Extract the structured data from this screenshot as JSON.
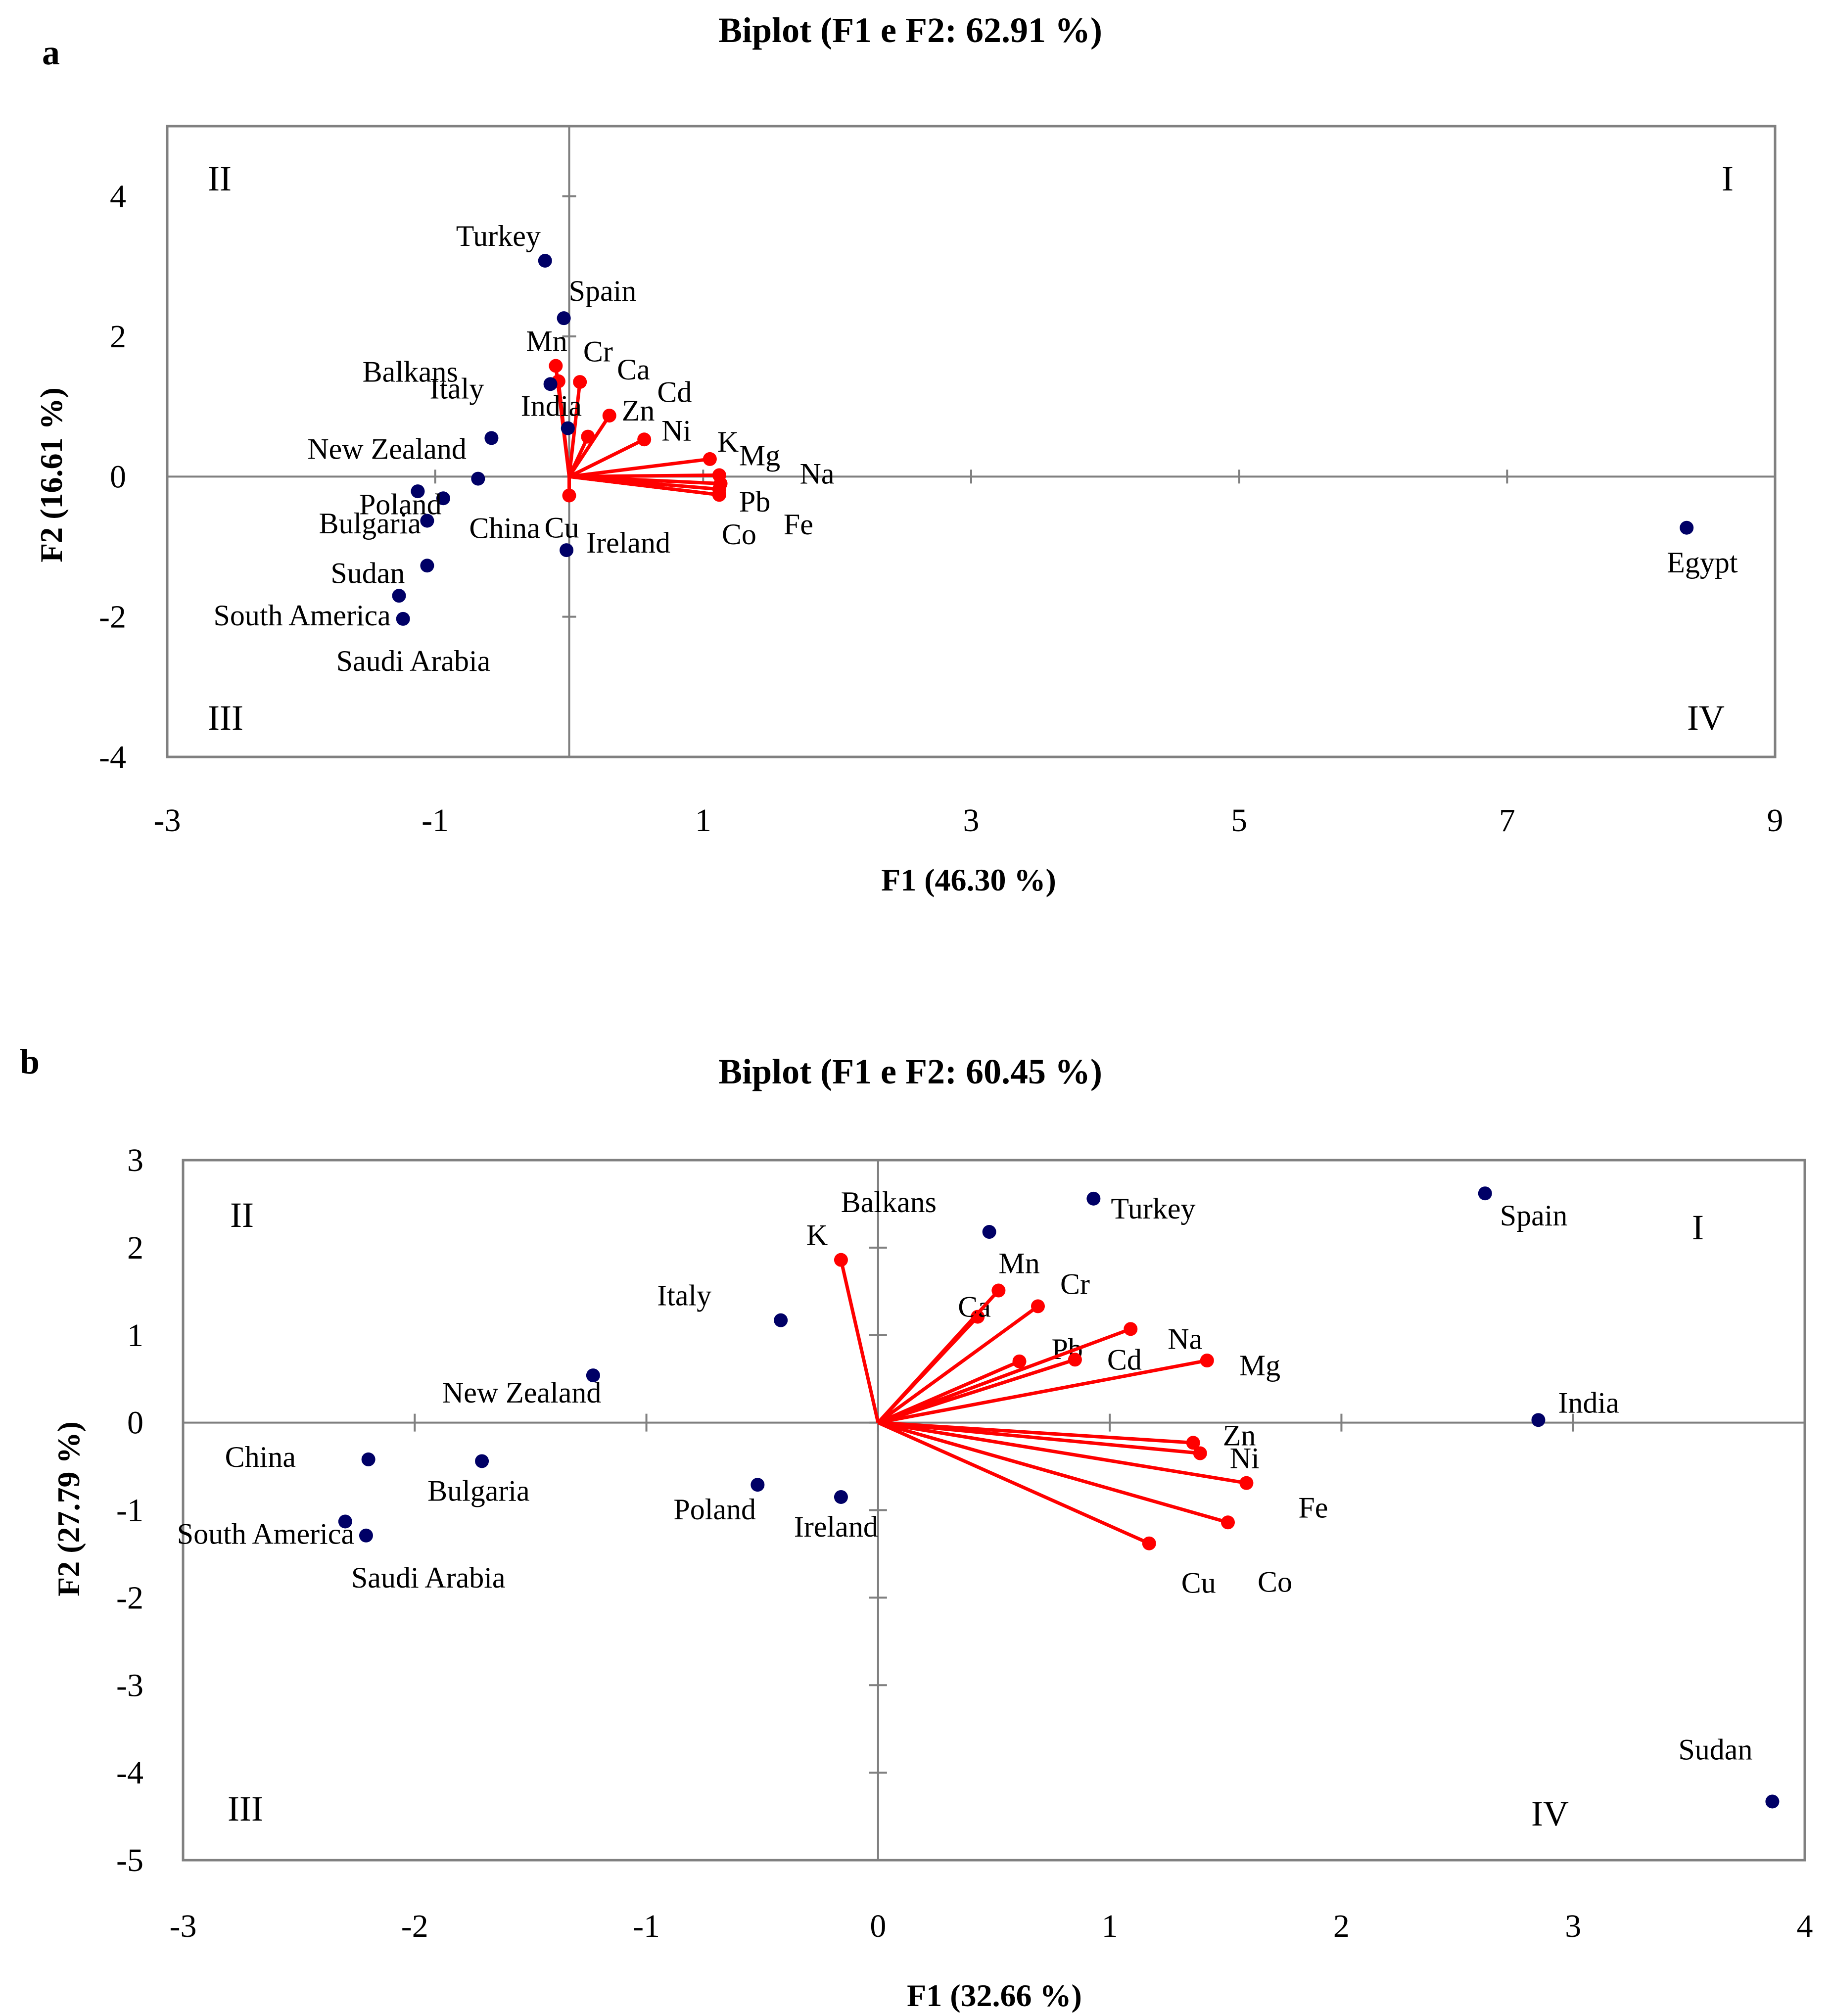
{
  "chart_data": [
    {
      "type": "scatter",
      "panel_label": "a",
      "title": "Biplot (F1 e F2: 62.91 %)",
      "xlabel": "F1 (46.30 %)",
      "ylabel": "F2 (16.61 %)",
      "xlim": [
        -3,
        9
      ],
      "ylim": [
        -4,
        5
      ],
      "xticks": [
        "-3",
        "-1",
        "1",
        "3",
        "5",
        "7",
        "9"
      ],
      "yticks": [
        "-4",
        "-2",
        "0",
        "2",
        "4"
      ],
      "xtick_values": [
        -3,
        -1,
        1,
        3,
        5,
        7,
        9
      ],
      "ytick_values": [
        -4,
        -2,
        0,
        2,
        4
      ],
      "grid": false,
      "quadrants": [
        "I",
        "II",
        "III",
        "IV"
      ],
      "colors": {
        "observations": "#000066",
        "variables": "#ff0000",
        "frame": "#808080"
      },
      "observations": [
        {
          "name": "Turkey",
          "x": -0.18,
          "y": 3.08
        },
        {
          "name": "Spain",
          "x": -0.04,
          "y": 2.26
        },
        {
          "name": "Balkans",
          "x": -0.14,
          "y": 1.32
        },
        {
          "name": "Italy",
          "x": -0.58,
          "y": 0.55
        },
        {
          "name": "India",
          "x": -0.01,
          "y": 0.69
        },
        {
          "name": "New Zealand",
          "x": -0.68,
          "y": -0.03
        },
        {
          "name": "Bulgaria",
          "x": -1.13,
          "y": -0.21
        },
        {
          "name": "Poland",
          "x": -0.94,
          "y": -0.31
        },
        {
          "name": "Ireland",
          "x": -0.02,
          "y": -1.05
        },
        {
          "name": "China",
          "x": -1.06,
          "y": -0.63
        },
        {
          "name": "Sudan",
          "x": -1.06,
          "y": -1.27
        },
        {
          "name": "South America",
          "x": -1.27,
          "y": -1.7
        },
        {
          "name": "Saudi Arabia",
          "x": -1.24,
          "y": -2.03
        },
        {
          "name": "Egypt",
          "x": 8.34,
          "y": -0.73
        }
      ],
      "variables": [
        {
          "name": "Mn",
          "x": -0.1,
          "y": 1.58
        },
        {
          "name": "Cr",
          "x": -0.08,
          "y": 1.36
        },
        {
          "name": "Ca",
          "x": 0.08,
          "y": 1.35
        },
        {
          "name": "Cd",
          "x": 0.14,
          "y": 0.57
        },
        {
          "name": "Zn",
          "x": 0.3,
          "y": 0.87
        },
        {
          "name": "Ni",
          "x": 0.56,
          "y": 0.53
        },
        {
          "name": "K",
          "x": 1.05,
          "y": 0.25
        },
        {
          "name": "Mg",
          "x": 1.12,
          "y": 0.02
        },
        {
          "name": "Na",
          "x": 1.13,
          "y": -0.1
        },
        {
          "name": "Pb",
          "x": 1.12,
          "y": -0.18
        },
        {
          "name": "Fe",
          "x": 1.12,
          "y": -0.26
        },
        {
          "name": "Co",
          "x": 1.12,
          "y": -0.26
        },
        {
          "name": "Cu",
          "x": 0.0,
          "y": -0.27
        }
      ]
    },
    {
      "type": "scatter",
      "panel_label": "b",
      "title": "Biplot (F1 e F2: 60.45 %)",
      "xlabel": "F1 (32.66 %)",
      "ylabel": "F2 (27.79 %)",
      "xlim": [
        -3,
        4
      ],
      "ylim": [
        -5,
        3
      ],
      "xticks": [
        "-3",
        "-2",
        "-1",
        "0",
        "1",
        "2",
        "3",
        "4"
      ],
      "yticks": [
        "-5",
        "-4",
        "-3",
        "-2",
        "-1",
        "0",
        "1",
        "2",
        "3"
      ],
      "xtick_values": [
        -3,
        -2,
        -1,
        0,
        1,
        2,
        3,
        4
      ],
      "ytick_values": [
        -5,
        -4,
        -3,
        -2,
        -1,
        0,
        1,
        2,
        3
      ],
      "grid": false,
      "quadrants": [
        "I",
        "II",
        "III",
        "IV"
      ],
      "colors": {
        "observations": "#000066",
        "variables": "#ff0000",
        "frame": "#808080"
      },
      "observations": [
        {
          "name": "Balkans",
          "x": 0.48,
          "y": 2.18
        },
        {
          "name": "Turkey",
          "x": 0.93,
          "y": 2.56
        },
        {
          "name": "Spain",
          "x": 2.62,
          "y": 2.62
        },
        {
          "name": "Italy",
          "x": -0.42,
          "y": 1.17
        },
        {
          "name": "New Zealand",
          "x": -1.23,
          "y": 0.54
        },
        {
          "name": "India",
          "x": 2.85,
          "y": 0.03
        },
        {
          "name": "China",
          "x": -2.2,
          "y": -0.42
        },
        {
          "name": "Bulgaria",
          "x": -1.71,
          "y": -0.44
        },
        {
          "name": "Poland",
          "x": -0.52,
          "y": -0.71
        },
        {
          "name": "Ireland",
          "x": -0.16,
          "y": -0.85
        },
        {
          "name": "South America",
          "x": -2.3,
          "y": -1.13
        },
        {
          "name": "Saudi Arabia",
          "x": -2.21,
          "y": -1.29
        },
        {
          "name": "Sudan",
          "x": 3.86,
          "y": -4.33
        }
      ],
      "variables": [
        {
          "name": "K",
          "x": -0.16,
          "y": 1.86
        },
        {
          "name": "Ca",
          "x": 0.43,
          "y": 1.21
        },
        {
          "name": "Mn",
          "x": 0.52,
          "y": 1.51
        },
        {
          "name": "Cr",
          "x": 0.69,
          "y": 1.33
        },
        {
          "name": "Pb",
          "x": 0.61,
          "y": 0.7
        },
        {
          "name": "Cd",
          "x": 0.85,
          "y": 0.72
        },
        {
          "name": "Na",
          "x": 1.09,
          "y": 1.07
        },
        {
          "name": "Mg",
          "x": 1.42,
          "y": 0.71
        },
        {
          "name": "Zn",
          "x": 1.36,
          "y": -0.23
        },
        {
          "name": "Ni",
          "x": 1.39,
          "y": -0.35
        },
        {
          "name": "Fe",
          "x": 1.59,
          "y": -0.69
        },
        {
          "name": "Co",
          "x": 1.51,
          "y": -1.14
        },
        {
          "name": "Cu",
          "x": 1.17,
          "y": -1.38
        }
      ]
    }
  ]
}
